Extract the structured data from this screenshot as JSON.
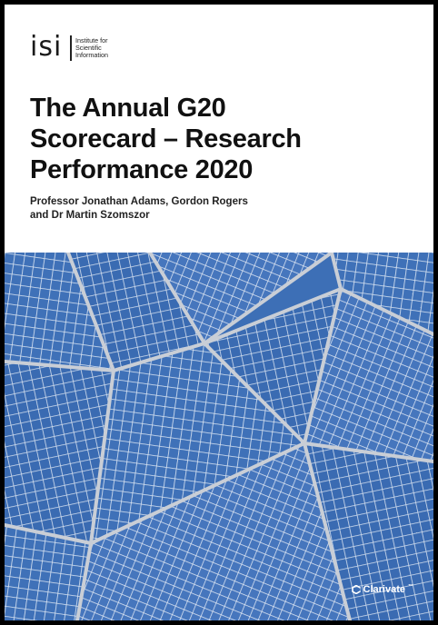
{
  "cover": {
    "logo": {
      "mark": "isi",
      "lines": [
        "Institute for",
        "Scientific",
        "Information"
      ]
    },
    "title_lines": [
      "The Annual G20",
      "Scorecard – Research",
      "Performance 2020"
    ],
    "author_lines": [
      "Professor Jonathan Adams, Gordon Rogers",
      "and Dr Martin Szomszor"
    ],
    "publisher": "Clarivate",
    "publisher_mark": "™",
    "colors": {
      "panel_blue": "#3d6fb6",
      "grid_line": "#dce6f3",
      "strut": "#c9ced6"
    }
  }
}
